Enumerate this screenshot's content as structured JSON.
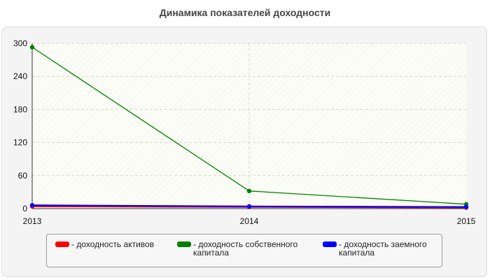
{
  "chart_data": {
    "type": "line",
    "title": "Динамика показателей доходности",
    "x": [
      "2013",
      "2014",
      "2015"
    ],
    "ylim": [
      0,
      300
    ],
    "yticks": [
      0,
      60,
      120,
      180,
      240,
      300
    ],
    "grid": true,
    "legend_position": "bottom",
    "series": [
      {
        "name": "- доходность активов",
        "color": "#ff0000",
        "values": [
          4,
          3,
          2
        ]
      },
      {
        "name": "- доходность собственного капитала",
        "color": "#008000",
        "values": [
          293,
          32,
          8
        ]
      },
      {
        "name": "- доходность заемного капитала",
        "color": "#0000ff",
        "values": [
          6,
          4,
          3
        ]
      }
    ]
  }
}
